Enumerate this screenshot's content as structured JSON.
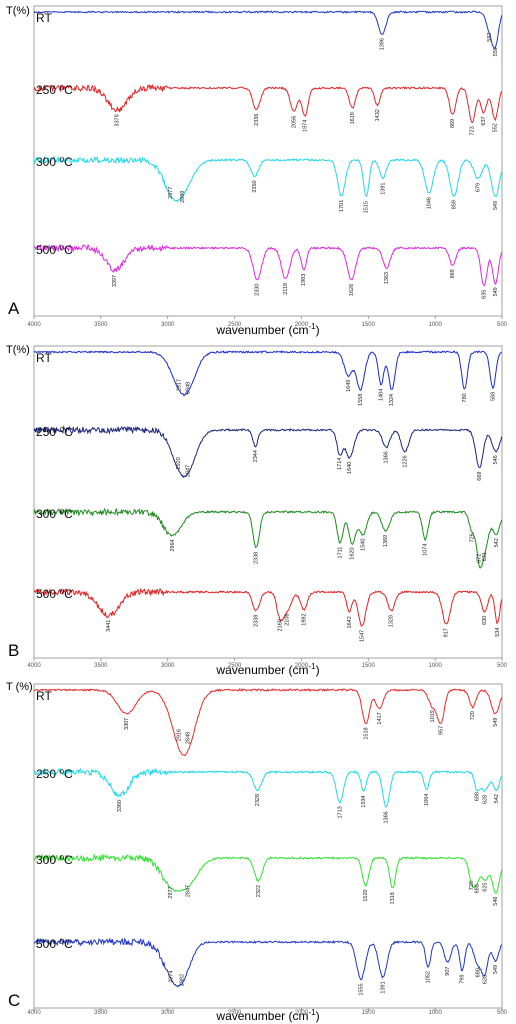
{
  "figure": {
    "panels": [
      {
        "letter": "A",
        "ylabel": "T(%)",
        "xlabel": "wavenumber (cm",
        "xlabel_sup": "-1",
        "xlabel_end": ")",
        "xticks": [
          "4000",
          "3500",
          "3000",
          "2500",
          "2000",
          "1500",
          "1000",
          "500"
        ]
      },
      {
        "letter": "B",
        "ylabel": "T(%)",
        "xlabel": "wavenumber (cm",
        "xlabel_sup": "-1",
        "xlabel_end": ")",
        "xticks": [
          "4000",
          "3500",
          "3000",
          "2500",
          "2000",
          "1500",
          "1000",
          "500"
        ]
      },
      {
        "letter": "C",
        "ylabel": "T (%)",
        "xlabel": "wavenumber (cm",
        "xlabel_sup": "-1",
        "xlabel_end": ")",
        "xticks": [
          "4000",
          "3500",
          "3000",
          "2500",
          "2000",
          "1500",
          "1000",
          "500"
        ]
      }
    ]
  },
  "chart_data": [
    {
      "type": "line",
      "panel": "A",
      "xlabel": "wavenumber (cm-1)",
      "ylabel": "T(%)",
      "xlim": [
        4000,
        500
      ],
      "x_reversed": true,
      "series": [
        {
          "name": "RT",
          "color": "#1f35c8",
          "peaks": [
            1396,
            592,
            550
          ]
        },
        {
          "name": "250 ⁰C",
          "color": "#e0282a",
          "peaks": [
            3378,
            2336,
            2056,
            1974,
            1619,
            1432,
            869,
            723,
            637,
            552
          ]
        },
        {
          "name": "300 ⁰C",
          "color": "#22d8e8",
          "peaks": [
            2977,
            2889,
            2350,
            1701,
            1515,
            1391,
            1046,
            859,
            679,
            549
          ]
        },
        {
          "name": "500 ⁰C",
          "color": "#e028e0",
          "peaks": [
            3397,
            2330,
            2118,
            1983,
            1626,
            1363,
            869,
            635,
            549
          ]
        }
      ]
    },
    {
      "type": "line",
      "panel": "B",
      "xlabel": "wavenumber (cm-1)",
      "ylabel": "T(%)",
      "xlim": [
        4000,
        500
      ],
      "x_reversed": true,
      "series": [
        {
          "name": "RT",
          "color": "#1a2ad0",
          "peaks": [
            2917,
            2848,
            1649,
            1558,
            1404,
            1324,
            780,
            568
          ]
        },
        {
          "name": "250 ⁰C",
          "color": "#18257a",
          "peaks": [
            2920,
            2847,
            2344,
            1714,
            1640,
            1366,
            1226,
            669,
            546
          ]
        },
        {
          "name": "300 ⁰C",
          "color": "#1e8a1e",
          "peaks": [
            2964,
            2338,
            1711,
            1620,
            1540,
            1369,
            1074,
            726,
            672,
            631,
            542
          ]
        },
        {
          "name": "500 ⁰C",
          "color": "#e02222",
          "peaks": [
            3441,
            2338,
            2160,
            2108,
            1982,
            1642,
            1547,
            1328,
            917,
            630,
            534
          ]
        }
      ]
    },
    {
      "type": "line",
      "panel": "C",
      "xlabel": "wavenumber (cm-1)",
      "ylabel": "T (%)",
      "xlim": [
        4000,
        500
      ],
      "x_reversed": true,
      "series": [
        {
          "name": "RT",
          "color": "#e82a2a",
          "peaks": [
            3307,
            2916,
            2848,
            1518,
            1417,
            1019,
            957,
            720,
            549
          ]
        },
        {
          "name": "250 ⁰C",
          "color": "#22d8e8",
          "peaks": [
            3360,
            2328,
            1713,
            1534,
            1366,
            1064,
            688,
            628,
            542
          ]
        },
        {
          "name": "300 ⁰C",
          "color": "#33e033",
          "peaks": [
            2977,
            2847,
            2322,
            1520,
            1318,
            728,
            688,
            625,
            546
          ]
        },
        {
          "name": "500 ⁰C",
          "color": "#1f35c8",
          "peaks": [
            2974,
            2892,
            1555,
            1391,
            1052,
            907,
            798,
            680,
            628,
            549
          ]
        }
      ]
    }
  ]
}
